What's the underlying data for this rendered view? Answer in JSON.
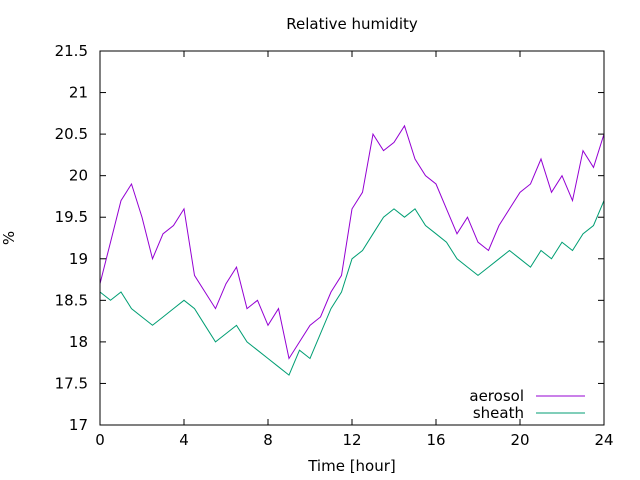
{
  "chart_data": {
    "type": "line",
    "title": "Relative humidity",
    "xlabel": "Time [hour]",
    "ylabel": "%",
    "xlim": [
      0,
      24
    ],
    "ylim": [
      17,
      21.5
    ],
    "xticks": [
      0,
      4,
      8,
      12,
      16,
      20,
      24
    ],
    "yticks": [
      17,
      17.5,
      18,
      18.5,
      19,
      19.5,
      20,
      20.5,
      21,
      21.5
    ],
    "grid": false,
    "legend": "bottom-right",
    "series": [
      {
        "name": "aerosol",
        "color": "#9400d3",
        "x": [
          0,
          0.5,
          1,
          1.5,
          2,
          2.5,
          3,
          3.5,
          4,
          4.5,
          5,
          5.5,
          6,
          6.5,
          7,
          7.5,
          8,
          8.5,
          9,
          9.5,
          10,
          10.5,
          11,
          11.5,
          12,
          12.5,
          13,
          13.5,
          14,
          14.5,
          15,
          15.5,
          16,
          16.5,
          17,
          17.5,
          18,
          18.5,
          19,
          19.5,
          20,
          20.5,
          21,
          21.5,
          22,
          22.5,
          23,
          23.5,
          24
        ],
        "y": [
          18.7,
          19.2,
          19.7,
          19.9,
          19.5,
          19.0,
          19.3,
          19.4,
          19.6,
          18.8,
          18.6,
          18.4,
          18.7,
          18.9,
          18.4,
          18.5,
          18.2,
          18.4,
          17.8,
          18.0,
          18.2,
          18.3,
          18.6,
          18.8,
          19.6,
          19.8,
          20.5,
          20.3,
          20.4,
          20.6,
          20.2,
          20.0,
          19.9,
          19.6,
          19.3,
          19.5,
          19.2,
          19.1,
          19.4,
          19.6,
          19.8,
          19.9,
          20.2,
          19.8,
          20.0,
          19.7,
          20.3,
          20.1,
          20.5
        ]
      },
      {
        "name": "sheath",
        "color": "#009e73",
        "x": [
          0,
          0.5,
          1,
          1.5,
          2,
          2.5,
          3,
          3.5,
          4,
          4.5,
          5,
          5.5,
          6,
          6.5,
          7,
          7.5,
          8,
          8.5,
          9,
          9.5,
          10,
          10.5,
          11,
          11.5,
          12,
          12.5,
          13,
          13.5,
          14,
          14.5,
          15,
          15.5,
          16,
          16.5,
          17,
          17.5,
          18,
          18.5,
          19,
          19.5,
          20,
          20.5,
          21,
          21.5,
          22,
          22.5,
          23,
          23.5,
          24
        ],
        "y": [
          18.6,
          18.5,
          18.6,
          18.4,
          18.3,
          18.2,
          18.3,
          18.4,
          18.5,
          18.4,
          18.2,
          18.0,
          18.1,
          18.2,
          18.0,
          17.9,
          17.8,
          17.7,
          17.6,
          17.9,
          17.8,
          18.1,
          18.4,
          18.6,
          19.0,
          19.1,
          19.3,
          19.5,
          19.6,
          19.5,
          19.6,
          19.4,
          19.3,
          19.2,
          19.0,
          18.9,
          18.8,
          18.9,
          19.0,
          19.1,
          19.0,
          18.9,
          19.1,
          19.0,
          19.2,
          19.1,
          19.3,
          19.4,
          19.7
        ]
      }
    ]
  }
}
